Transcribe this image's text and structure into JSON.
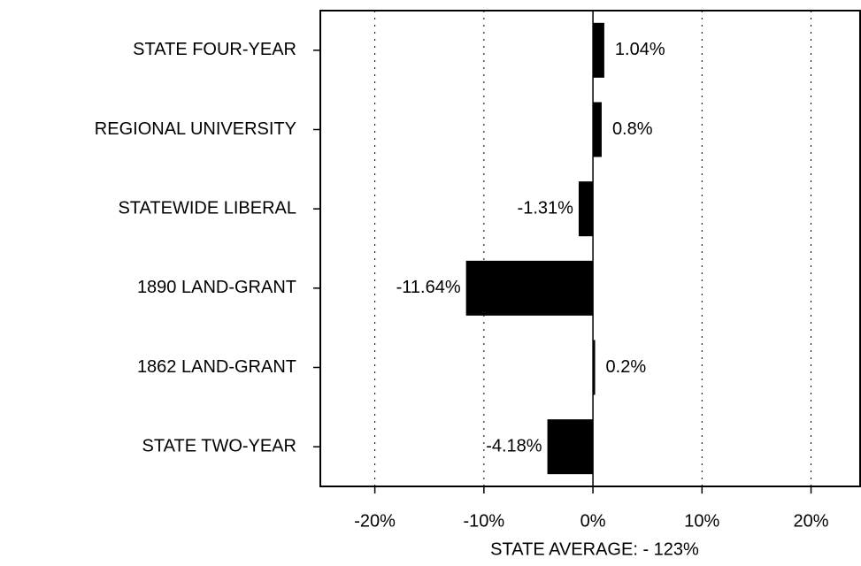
{
  "chart_data": {
    "type": "hbar",
    "categories": [
      "STATE FOUR-YEAR",
      "REGIONAL UNIVERSITY",
      "STATEWIDE LIBERAL",
      "1890 LAND-GRANT",
      "1862 LAND-GRANT",
      "STATE TWO-YEAR"
    ],
    "values": [
      1.04,
      0.8,
      -1.31,
      -11.64,
      0.2,
      -4.18
    ],
    "value_labels": [
      "1.04%",
      "0.8%",
      "-1.31%",
      "-11.64%",
      "0.2%",
      "-4.18%"
    ],
    "color": "#000000",
    "xlabel": "STATE AVERAGE: - 123%",
    "xlim": [
      -25,
      24.5
    ],
    "xticks": [
      {
        "value": -20,
        "label": "-20%"
      },
      {
        "value": -10,
        "label": "-10%"
      },
      {
        "value": 0,
        "label": "0%"
      },
      {
        "value": 10,
        "label": "10%"
      },
      {
        "value": 20,
        "label": "20%"
      }
    ],
    "grid": true
  }
}
